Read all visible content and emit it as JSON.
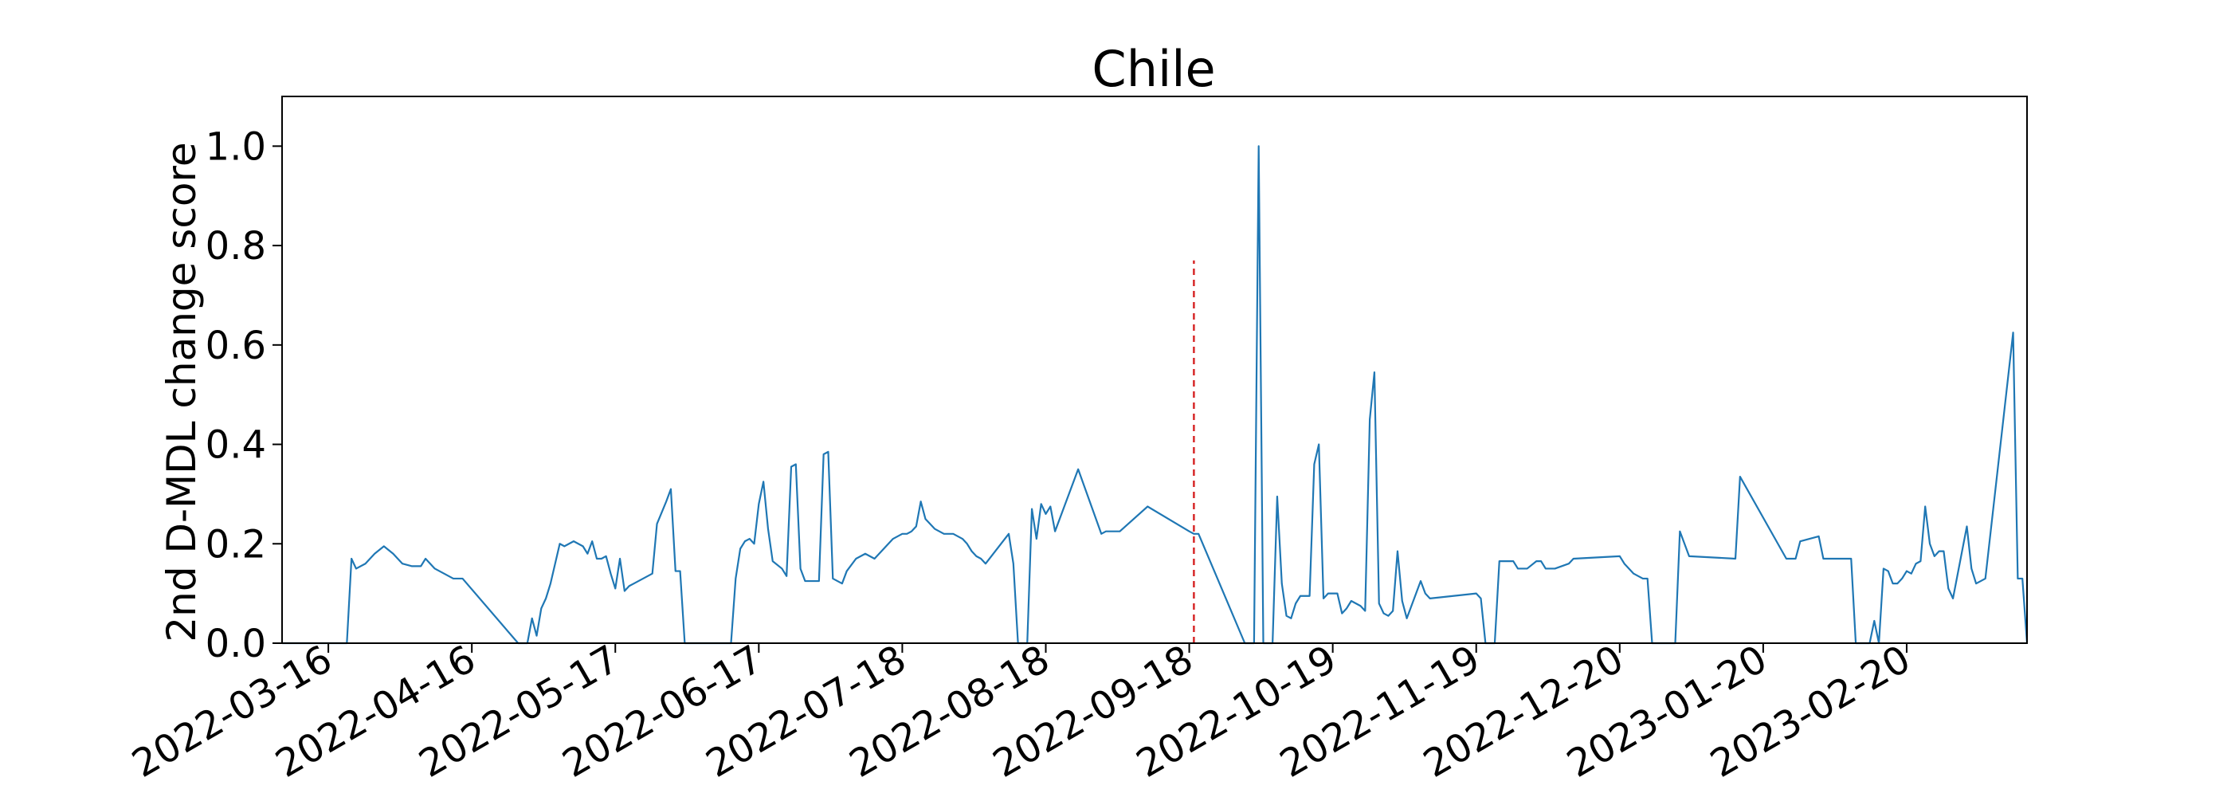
{
  "chart_data": {
    "type": "line",
    "title": "Chile",
    "ylabel": "2nd D-MDL change score",
    "xlabel": "",
    "ylim": [
      0,
      1.1
    ],
    "yticks": [
      0.0,
      0.2,
      0.4,
      0.6,
      0.8,
      1.0
    ],
    "ytick_labels": [
      "0.0",
      "0.2",
      "0.4",
      "0.6",
      "0.8",
      "1.0"
    ],
    "xlim": [
      "2022-03-06",
      "2023-03-18"
    ],
    "xticks": [
      "2022-03-16",
      "2022-04-16",
      "2022-05-17",
      "2022-06-17",
      "2022-07-18",
      "2022-08-18",
      "2022-09-18",
      "2022-10-19",
      "2022-11-19",
      "2022-12-20",
      "2023-01-20",
      "2023-02-20"
    ],
    "grid": false,
    "colors": {
      "series": "#1f77b4",
      "marker": "#d62728"
    },
    "markers": [
      {
        "x": "2022-09-19",
        "style": "dashed"
      }
    ],
    "series": [
      {
        "x": [
          "2022-03-06",
          "2022-03-20",
          "2022-03-21",
          "2022-03-22",
          "2022-03-24",
          "2022-03-26",
          "2022-03-28",
          "2022-03-30",
          "2022-04-01",
          "2022-04-03",
          "2022-04-05",
          "2022-04-06",
          "2022-04-08",
          "2022-04-10",
          "2022-04-12",
          "2022-04-14",
          "2022-04-26",
          "2022-04-28",
          "2022-04-29",
          "2022-04-30",
          "2022-05-01",
          "2022-05-02",
          "2022-05-03",
          "2022-05-05",
          "2022-05-06",
          "2022-05-07",
          "2022-05-08",
          "2022-05-09",
          "2022-05-10",
          "2022-05-11",
          "2022-05-12",
          "2022-05-13",
          "2022-05-14",
          "2022-05-15",
          "2022-05-16",
          "2022-05-17",
          "2022-05-18",
          "2022-05-19",
          "2022-05-20",
          "2022-05-21",
          "2022-05-25",
          "2022-05-26",
          "2022-05-28",
          "2022-05-29",
          "2022-05-30",
          "2022-05-31",
          "2022-06-01",
          "2022-06-11",
          "2022-06-12",
          "2022-06-13",
          "2022-06-14",
          "2022-06-15",
          "2022-06-16",
          "2022-06-17",
          "2022-06-18",
          "2022-06-19",
          "2022-06-20",
          "2022-06-22",
          "2022-06-23",
          "2022-06-24",
          "2022-06-25",
          "2022-06-26",
          "2022-06-27",
          "2022-06-28",
          "2022-06-29",
          "2022-06-30",
          "2022-07-01",
          "2022-07-02",
          "2022-07-03",
          "2022-07-05",
          "2022-07-06",
          "2022-07-08",
          "2022-07-10",
          "2022-07-12",
          "2022-07-14",
          "2022-07-16",
          "2022-07-18",
          "2022-07-19",
          "2022-07-20",
          "2022-07-21",
          "2022-07-22",
          "2022-07-23",
          "2022-07-25",
          "2022-07-27",
          "2022-07-29",
          "2022-07-31",
          "2022-08-01",
          "2022-08-02",
          "2022-08-03",
          "2022-08-04",
          "2022-08-05",
          "2022-08-10",
          "2022-08-11",
          "2022-08-12",
          "2022-08-13",
          "2022-08-14",
          "2022-08-15",
          "2022-08-16",
          "2022-08-17",
          "2022-08-18",
          "2022-08-19",
          "2022-08-20",
          "2022-08-25",
          "2022-08-30",
          "2022-08-31",
          "2022-09-03",
          "2022-09-09",
          "2022-09-18",
          "2022-09-19",
          "2022-09-20",
          "2022-09-30",
          "2022-10-02",
          "2022-10-03",
          "2022-10-04",
          "2022-10-05",
          "2022-10-06",
          "2022-10-07",
          "2022-10-08",
          "2022-10-09",
          "2022-10-10",
          "2022-10-11",
          "2022-10-12",
          "2022-10-14",
          "2022-10-15",
          "2022-10-16",
          "2022-10-17",
          "2022-10-18",
          "2022-10-20",
          "2022-10-21",
          "2022-10-22",
          "2022-10-23",
          "2022-10-24",
          "2022-10-25",
          "2022-10-26",
          "2022-10-27",
          "2022-10-28",
          "2022-10-29",
          "2022-10-30",
          "2022-10-31",
          "2022-11-01",
          "2022-11-02",
          "2022-11-03",
          "2022-11-04",
          "2022-11-06",
          "2022-11-07",
          "2022-11-08",
          "2022-11-09",
          "2022-11-19",
          "2022-11-20",
          "2022-11-21",
          "2022-11-22",
          "2022-11-23",
          "2022-11-24",
          "2022-11-26",
          "2022-11-27",
          "2022-11-28",
          "2022-11-30",
          "2022-12-02",
          "2022-12-03",
          "2022-12-04",
          "2022-12-06",
          "2022-12-09",
          "2022-12-10",
          "2022-12-20",
          "2022-12-21",
          "2022-12-23",
          "2022-12-24",
          "2022-12-25",
          "2022-12-26",
          "2022-12-27",
          "2022-12-28",
          "2023-01-01",
          "2023-01-02",
          "2023-01-03",
          "2023-01-04",
          "2023-01-14",
          "2023-01-15",
          "2023-01-25",
          "2023-01-26",
          "2023-01-27",
          "2023-01-28",
          "2023-02-01",
          "2023-02-02",
          "2023-02-03",
          "2023-02-04",
          "2023-02-06",
          "2023-02-08",
          "2023-02-09",
          "2023-02-10",
          "2023-02-12",
          "2023-02-13",
          "2023-02-14",
          "2023-02-15",
          "2023-02-16",
          "2023-02-17",
          "2023-02-18",
          "2023-02-19",
          "2023-02-20",
          "2023-02-21",
          "2023-02-22",
          "2023-02-23",
          "2023-02-24",
          "2023-02-25",
          "2023-02-26",
          "2023-02-27",
          "2023-02-28",
          "2023-03-01",
          "2023-03-02",
          "2023-03-05",
          "2023-03-06",
          "2023-03-07",
          "2023-03-08",
          "2023-03-09",
          "2023-03-15",
          "2023-03-16",
          "2023-03-17",
          "2023-03-18"
        ],
        "values": [
          0.0,
          0.0,
          0.17,
          0.15,
          0.16,
          0.18,
          0.195,
          0.18,
          0.16,
          0.155,
          0.155,
          0.17,
          0.15,
          0.14,
          0.13,
          0.13,
          0.0,
          0.0,
          0.05,
          0.015,
          0.07,
          0.09,
          0.12,
          0.2,
          0.195,
          0.2,
          0.205,
          0.2,
          0.195,
          0.18,
          0.205,
          0.17,
          0.17,
          0.175,
          0.14,
          0.11,
          0.17,
          0.105,
          0.115,
          0.12,
          0.14,
          0.24,
          0.285,
          0.31,
          0.145,
          0.145,
          0.0,
          0.0,
          0.13,
          0.19,
          0.205,
          0.21,
          0.2,
          0.28,
          0.325,
          0.23,
          0.165,
          0.15,
          0.135,
          0.355,
          0.36,
          0.15,
          0.125,
          0.125,
          0.125,
          0.125,
          0.38,
          0.385,
          0.13,
          0.12,
          0.145,
          0.17,
          0.18,
          0.17,
          0.19,
          0.21,
          0.22,
          0.22,
          0.225,
          0.235,
          0.285,
          0.25,
          0.23,
          0.22,
          0.22,
          0.21,
          0.2,
          0.185,
          0.175,
          0.17,
          0.16,
          0.22,
          0.16,
          0.0,
          0.0,
          0.0,
          0.27,
          0.21,
          0.28,
          0.26,
          0.275,
          0.225,
          0.35,
          0.22,
          0.225,
          0.225,
          0.275,
          0.225,
          0.22,
          0.22,
          0.0,
          0.0,
          1.0,
          0.0,
          0.0,
          0.0,
          0.295,
          0.12,
          0.055,
          0.05,
          0.08,
          0.095,
          0.095,
          0.36,
          0.4,
          0.09,
          0.1,
          0.1,
          0.06,
          0.07,
          0.085,
          0.08,
          0.075,
          0.065,
          0.45,
          0.545,
          0.08,
          0.06,
          0.055,
          0.065,
          0.185,
          0.085,
          0.05,
          0.1,
          0.125,
          0.1,
          0.09,
          0.1,
          0.09,
          0.0,
          0.0,
          0.0,
          0.165,
          0.165,
          0.165,
          0.15,
          0.15,
          0.165,
          0.165,
          0.15,
          0.15,
          0.16,
          0.17,
          0.175,
          0.16,
          0.14,
          0.135,
          0.13,
          0.13,
          0.0,
          0.0,
          0.0,
          0.225,
          0.2,
          0.175,
          0.17,
          0.335,
          0.17,
          0.17,
          0.17,
          0.205,
          0.215,
          0.17,
          0.17,
          0.17,
          0.17,
          0.17,
          0.0,
          0.0,
          0.0,
          0.045,
          0.0,
          0.15,
          0.145,
          0.12,
          0.12,
          0.13,
          0.145,
          0.14,
          0.16,
          0.165,
          0.275,
          0.2,
          0.175,
          0.185,
          0.185,
          0.11,
          0.09,
          0.235,
          0.15,
          0.12,
          0.125,
          0.13,
          0.625,
          0.13,
          0.13,
          0.0
        ]
      }
    ]
  }
}
